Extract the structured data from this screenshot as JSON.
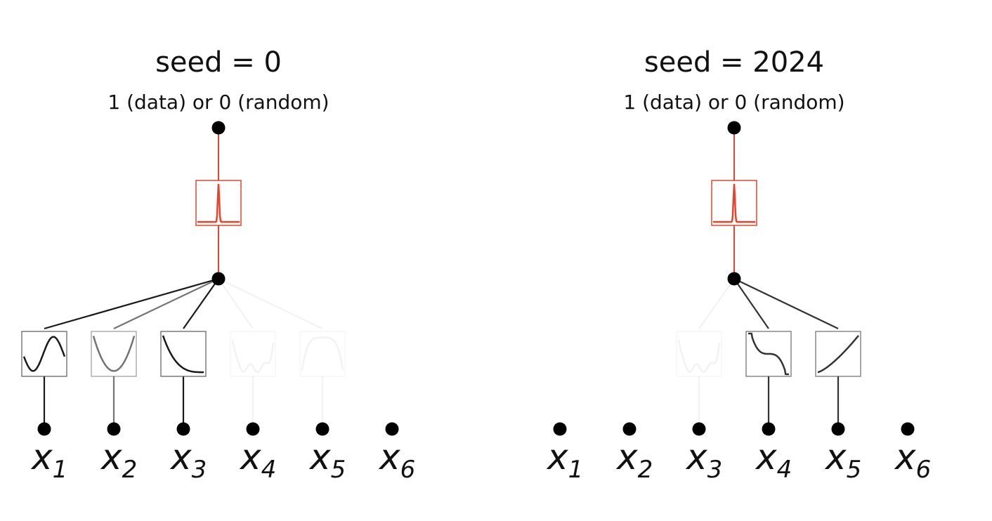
{
  "panels": [
    {
      "title": "seed = 0",
      "output_label": "1 (data) or 0 (random)",
      "output_activation": {
        "shape": "spike",
        "color": "#e8432e"
      },
      "inputs": [
        {
          "var": "x",
          "sub": "1",
          "activation": "sine",
          "opacity": 0.9
        },
        {
          "var": "x",
          "sub": "2",
          "activation": "parabola",
          "opacity": 0.55
        },
        {
          "var": "x",
          "sub": "3",
          "activation": "decay",
          "opacity": 0.9
        },
        {
          "var": "x",
          "sub": "4",
          "activation": "bumpy",
          "opacity": 0.05
        },
        {
          "var": "x",
          "sub": "5",
          "activation": "plateau",
          "opacity": 0.05
        },
        {
          "var": "x",
          "sub": "6",
          "activation": "none",
          "opacity": 0
        }
      ]
    },
    {
      "title": "seed = 2024",
      "output_label": "1 (data) or 0 (random)",
      "output_activation": {
        "shape": "spike",
        "color": "#e8432e"
      },
      "inputs": [
        {
          "var": "x",
          "sub": "1",
          "activation": "none",
          "opacity": 0
        },
        {
          "var": "x",
          "sub": "2",
          "activation": "none",
          "opacity": 0
        },
        {
          "var": "x",
          "sub": "3",
          "activation": "bumpy",
          "opacity": 0.05
        },
        {
          "var": "x",
          "sub": "4",
          "activation": "cubic-down",
          "opacity": 0.8
        },
        {
          "var": "x",
          "sub": "5",
          "activation": "rise",
          "opacity": 0.8
        },
        {
          "var": "x",
          "sub": "6",
          "activation": "none",
          "opacity": 0
        }
      ]
    }
  ],
  "colors": {
    "edge": "#000000",
    "node": "#000000",
    "output_edge": "#e8432e",
    "box_border": "#555555"
  }
}
